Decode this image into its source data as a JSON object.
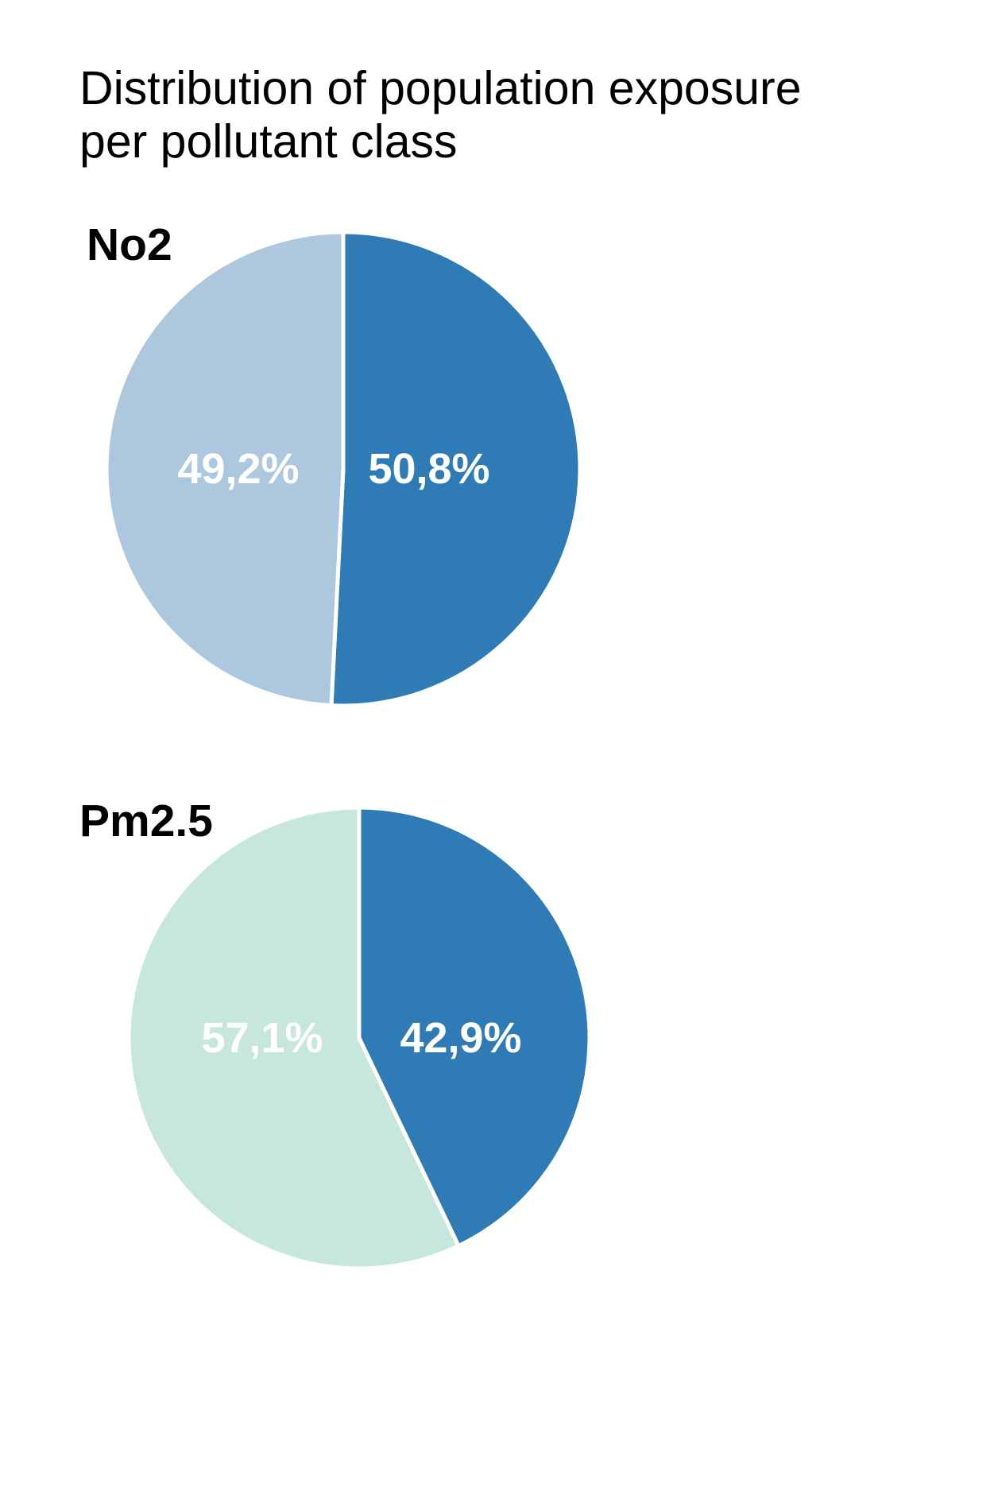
{
  "chart_data": {
    "type": "pie",
    "title": [
      "Distribution of population exposure",
      "per pollutant class"
    ],
    "charts": [
      {
        "id": "no2",
        "label": "No2",
        "slices": [
          {
            "value": 50.8,
            "label": "50,8%",
            "color": "#2e7bb6"
          },
          {
            "value": 49.2,
            "label": "49,2%",
            "color": "#adc8de"
          }
        ]
      },
      {
        "id": "pm25",
        "label": "Pm2.5",
        "slices": [
          {
            "value": 42.9,
            "label": "42,9%",
            "color": "#2e7bb6"
          },
          {
            "value": 57.1,
            "label": "57,1%",
            "color": "#c7e6dc"
          }
        ]
      }
    ]
  }
}
